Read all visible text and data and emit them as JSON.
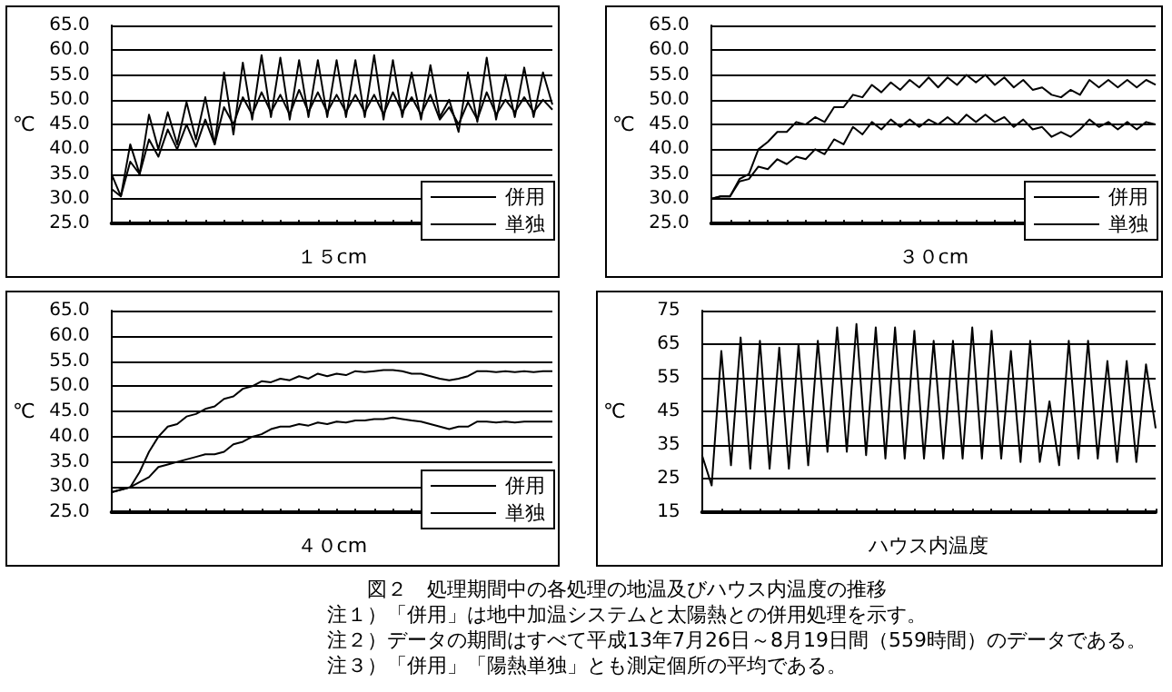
{
  "chart_data": [
    {
      "type": "line",
      "xlabel": "１５cm",
      "ylabel": "℃",
      "categories": [
        null,
        null,
        null,
        null,
        null,
        null,
        null,
        null,
        null,
        null,
        null,
        null,
        null,
        null,
        null,
        null,
        null,
        null,
        null,
        null,
        null,
        null,
        null,
        null,
        null,
        null,
        null,
        null,
        null,
        null,
        null,
        null,
        null,
        null,
        null,
        null,
        null,
        null,
        null,
        null,
        null,
        null,
        null,
        null,
        null,
        null,
        null,
        null
      ],
      "series": [
        {
          "name": "併用",
          "color": "#000000",
          "values": [
            35,
            30.5,
            41,
            35,
            47,
            40,
            47.5,
            41,
            49.5,
            42,
            50.5,
            41,
            55.5,
            43,
            57.5,
            46,
            59,
            46.5,
            58.5,
            46,
            58,
            46.5,
            58,
            46.5,
            58,
            46.5,
            58,
            46.5,
            59,
            46,
            58,
            46.5,
            55.5,
            46,
            57,
            46.5,
            50,
            43.5,
            55.5,
            45.5,
            58.5,
            46,
            55,
            46.5,
            56.5,
            46.5,
            55.5,
            49
          ]
        },
        {
          "name": "単独",
          "color": "#000000",
          "values": [
            32,
            30.5,
            37.5,
            35,
            42,
            38.5,
            44,
            40,
            45,
            40.5,
            46,
            41,
            48.5,
            45,
            50.5,
            47,
            51.5,
            47.5,
            51,
            47,
            52,
            47.5,
            51.5,
            47.5,
            51,
            47.5,
            51,
            47.5,
            51,
            47,
            51.5,
            47.5,
            50.5,
            47,
            51,
            46,
            48.5,
            45,
            49.5,
            46,
            51.5,
            47,
            50,
            47.5,
            50.5,
            47.5,
            50,
            48
          ]
        }
      ],
      "ylim": [
        25,
        65
      ],
      "yticks": [
        {
          "value": 25,
          "label": "25.0"
        },
        {
          "value": 30,
          "label": "30.0"
        },
        {
          "value": 35,
          "label": "35.0"
        },
        {
          "value": 40,
          "label": "40.0"
        },
        {
          "value": 45,
          "label": "45.0"
        },
        {
          "value": 50,
          "label": "50.0"
        },
        {
          "value": 55,
          "label": "55.0"
        },
        {
          "value": 60,
          "label": "60.0"
        },
        {
          "value": 65,
          "label": "65.0"
        }
      ],
      "grid": "y",
      "legend": "bottom right",
      "marker": "none"
    },
    {
      "type": "line",
      "xlabel": "３０cm",
      "ylabel": "℃",
      "categories": [
        null,
        null,
        null,
        null,
        null,
        null,
        null,
        null,
        null,
        null,
        null,
        null,
        null,
        null,
        null,
        null,
        null,
        null,
        null,
        null,
        null,
        null,
        null,
        null,
        null,
        null,
        null,
        null,
        null,
        null,
        null,
        null,
        null,
        null,
        null,
        null,
        null,
        null,
        null,
        null,
        null,
        null,
        null,
        null,
        null,
        null,
        null,
        null
      ],
      "series": [
        {
          "name": "併用",
          "color": "#000000",
          "values": [
            30,
            30.5,
            30.5,
            34,
            35,
            40,
            41.5,
            43.5,
            43.5,
            45.5,
            45,
            46.5,
            45.5,
            48.5,
            48.5,
            51,
            50.5,
            53,
            51.5,
            53.5,
            52,
            54,
            52.5,
            54.5,
            52.5,
            54.5,
            53,
            55,
            53.5,
            55,
            53,
            54.5,
            52.5,
            54,
            52,
            52.5,
            51,
            50.5,
            52,
            51,
            54,
            52.5,
            54,
            52.5,
            54,
            52.5,
            54,
            53
          ]
        },
        {
          "name": "単独",
          "color": "#000000",
          "values": [
            30,
            30.5,
            30.5,
            33.5,
            34,
            36.5,
            36,
            38,
            37,
            38.5,
            38,
            40,
            39,
            42,
            41,
            44.5,
            43,
            45.5,
            44,
            46,
            44.5,
            46,
            44.5,
            46,
            45,
            46.5,
            45,
            47,
            45.5,
            47,
            45.5,
            46.5,
            44.5,
            46,
            44,
            44.5,
            42.5,
            43.5,
            42.5,
            44,
            46,
            44.5,
            45.5,
            44,
            45.5,
            44,
            45.5,
            45
          ]
        }
      ],
      "ylim": [
        25,
        65
      ],
      "yticks": [
        {
          "value": 25,
          "label": "25.0"
        },
        {
          "value": 30,
          "label": "30.0"
        },
        {
          "value": 35,
          "label": "35.0"
        },
        {
          "value": 40,
          "label": "40.0"
        },
        {
          "value": 45,
          "label": "45.0"
        },
        {
          "value": 50,
          "label": "50.0"
        },
        {
          "value": 55,
          "label": "55.0"
        },
        {
          "value": 60,
          "label": "60.0"
        },
        {
          "value": 65,
          "label": "65.0"
        }
      ],
      "grid": "y",
      "legend": "bottom right",
      "marker": "none"
    },
    {
      "type": "line",
      "xlabel": "４０cm",
      "ylabel": "℃",
      "categories": [
        null,
        null,
        null,
        null,
        null,
        null,
        null,
        null,
        null,
        null,
        null,
        null,
        null,
        null,
        null,
        null,
        null,
        null,
        null,
        null,
        null,
        null,
        null,
        null,
        null,
        null,
        null,
        null,
        null,
        null,
        null,
        null,
        null,
        null,
        null,
        null,
        null,
        null,
        null,
        null,
        null,
        null,
        null,
        null,
        null,
        null,
        null,
        null
      ],
      "series": [
        {
          "name": "併用",
          "color": "#000000",
          "values": [
            29,
            29.5,
            30,
            33,
            37,
            40,
            42,
            42.5,
            44,
            44.5,
            45.5,
            46,
            47.5,
            48,
            49.5,
            50,
            51,
            50.8,
            51.5,
            51.2,
            52,
            51.5,
            52.5,
            52,
            52.5,
            52.2,
            53,
            52.8,
            53,
            53.2,
            53.2,
            53,
            52.5,
            52.5,
            52,
            51.5,
            51.2,
            51.5,
            52,
            53,
            53,
            52.8,
            53,
            52.8,
            53,
            52.8,
            53,
            53
          ]
        },
        {
          "name": "単独",
          "color": "#000000",
          "values": [
            29,
            29.5,
            30,
            31,
            32,
            34,
            34.5,
            35,
            35.5,
            36,
            36.5,
            36.5,
            37,
            38.5,
            39,
            40,
            40.5,
            41.5,
            42,
            42,
            42.5,
            42.2,
            42.8,
            42.5,
            43,
            42.8,
            43.2,
            43.2,
            43.5,
            43.5,
            43.8,
            43.5,
            43.2,
            43,
            42.5,
            42,
            41.5,
            42,
            42,
            43,
            43,
            42.8,
            43,
            42.8,
            43,
            43,
            43,
            43
          ]
        }
      ],
      "ylim": [
        25,
        65
      ],
      "yticks": [
        {
          "value": 25,
          "label": "25.0"
        },
        {
          "value": 30,
          "label": "30.0"
        },
        {
          "value": 35,
          "label": "35.0"
        },
        {
          "value": 40,
          "label": "40.0"
        },
        {
          "value": 45,
          "label": "45.0"
        },
        {
          "value": 50,
          "label": "50.0"
        },
        {
          "value": 55,
          "label": "55.0"
        },
        {
          "value": 60,
          "label": "60.0"
        },
        {
          "value": 65,
          "label": "65.0"
        }
      ],
      "grid": "y",
      "legend": "bottom right",
      "marker": "none"
    },
    {
      "type": "line",
      "xlabel": "ハウス内温度",
      "ylabel": "℃",
      "categories": [
        null,
        null,
        null,
        null,
        null,
        null,
        null,
        null,
        null,
        null,
        null,
        null,
        null,
        null,
        null,
        null,
        null,
        null,
        null,
        null,
        null,
        null,
        null,
        null,
        null,
        null,
        null,
        null,
        null,
        null,
        null,
        null,
        null,
        null,
        null,
        null,
        null,
        null,
        null,
        null,
        null,
        null,
        null,
        null,
        null,
        null,
        null,
        null
      ],
      "series": [
        {
          "color": "#000000",
          "values": [
            32,
            23,
            63,
            29,
            67,
            28,
            66,
            28,
            64,
            28,
            65,
            29,
            66,
            33,
            70,
            33,
            71,
            32,
            70,
            31,
            70,
            31,
            69,
            31,
            66,
            31,
            66,
            31,
            70,
            31,
            69,
            31,
            63,
            30,
            66,
            30,
            48,
            29,
            66,
            31,
            66,
            31,
            60,
            30,
            60,
            30,
            59,
            40
          ]
        }
      ],
      "ylim": [
        15,
        75
      ],
      "yticks": [
        15,
        25,
        35,
        45,
        55,
        65,
        75
      ],
      "grid": "y",
      "marker": "none"
    },
    {
      "type": "other",
      "title": "図２　処理期間中の各処理の地温及びハウス内温度の推移",
      "annotations": [
        "注１）「併用」は地中加温システムと太陽熱との併用処理を示す。",
        "注２）データの期間はすべて平成13年7月26日～8月19日間（559時間）のデータである。",
        "注３）「併用」「陽熱単独」とも測定個所の平均である。"
      ]
    }
  ]
}
